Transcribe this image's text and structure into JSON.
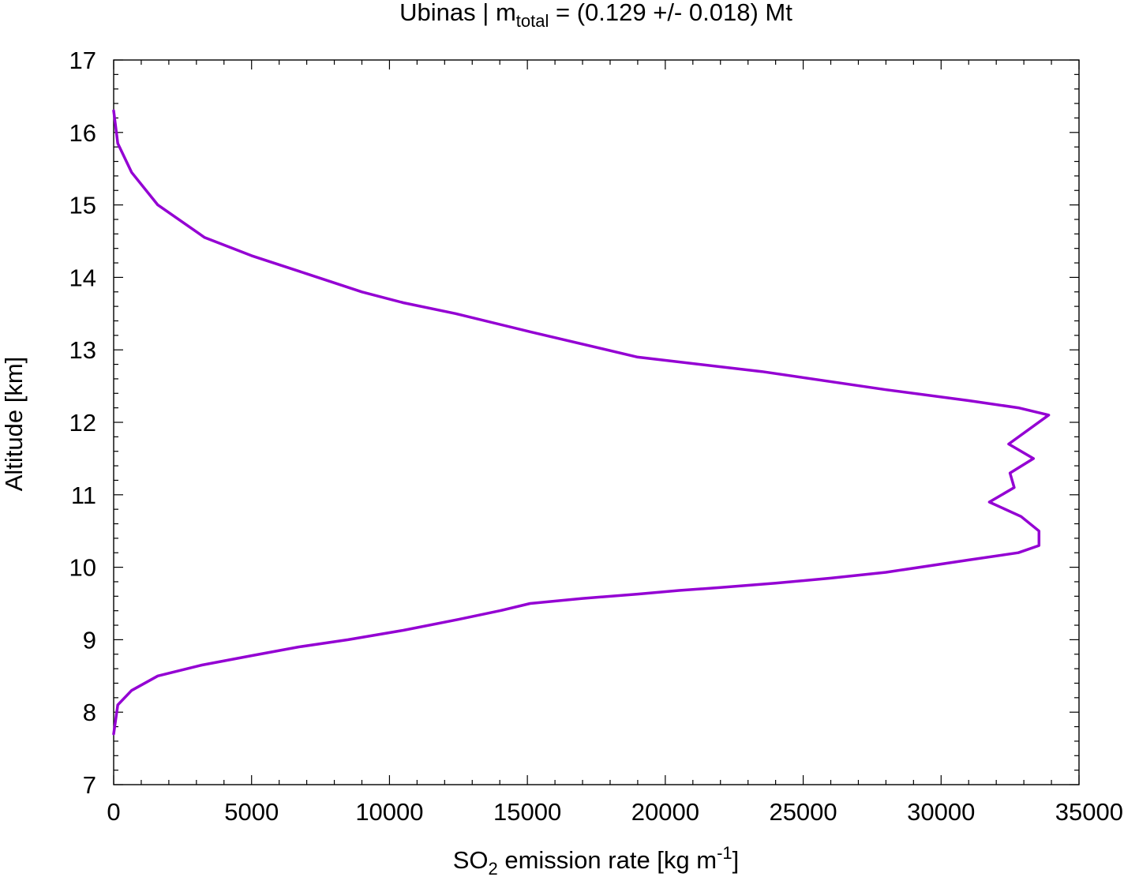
{
  "chart_data": {
    "type": "line",
    "title": {
      "prefix": "Ubinas | m",
      "subscript": "total",
      "suffix": " = (0.129 +/- 0.018) Mt"
    },
    "xlabel": {
      "prefix": "SO",
      "subscript": "2",
      "middle": " emission rate [kg m",
      "superscript": "-1",
      "suffix": "]"
    },
    "ylabel": "Altitude [km]",
    "xlim": [
      0,
      35000
    ],
    "ylim": [
      7,
      17
    ],
    "x_ticks": [
      "0",
      "5000",
      "10000",
      "15000",
      "20000",
      "25000",
      "30000",
      "35000"
    ],
    "y_ticks": [
      "7",
      "8",
      "9",
      "10",
      "11",
      "12",
      "13",
      "14",
      "15",
      "16",
      "17"
    ],
    "grid": false,
    "legend": "none",
    "series": [
      {
        "color": "#9400d3",
        "x": [
          0,
          150,
          650,
          1600,
          3200,
          5000,
          6700,
          8500,
          10500,
          12500,
          14000,
          15100,
          17000,
          19000,
          20500,
          22000,
          24000,
          26000,
          28000,
          31000,
          32800,
          33550,
          33550,
          32900,
          31750,
          32650,
          32500,
          33350,
          32450,
          33900,
          32800,
          31000,
          28000,
          23500,
          19000,
          15100,
          12400,
          10500,
          9000,
          7000,
          5000,
          3300,
          1600,
          650,
          150,
          0
        ],
        "y": [
          7.7,
          8.1,
          8.3,
          8.5,
          8.65,
          8.78,
          8.9,
          9.0,
          9.13,
          9.28,
          9.4,
          9.5,
          9.57,
          9.63,
          9.68,
          9.72,
          9.78,
          9.85,
          9.93,
          10.1,
          10.2,
          10.3,
          10.5,
          10.7,
          10.9,
          11.1,
          11.3,
          11.5,
          11.7,
          12.1,
          12.2,
          12.3,
          12.45,
          12.7,
          12.9,
          13.25,
          13.5,
          13.65,
          13.8,
          14.05,
          14.3,
          14.55,
          15.0,
          15.45,
          15.85,
          16.3
        ]
      }
    ]
  }
}
